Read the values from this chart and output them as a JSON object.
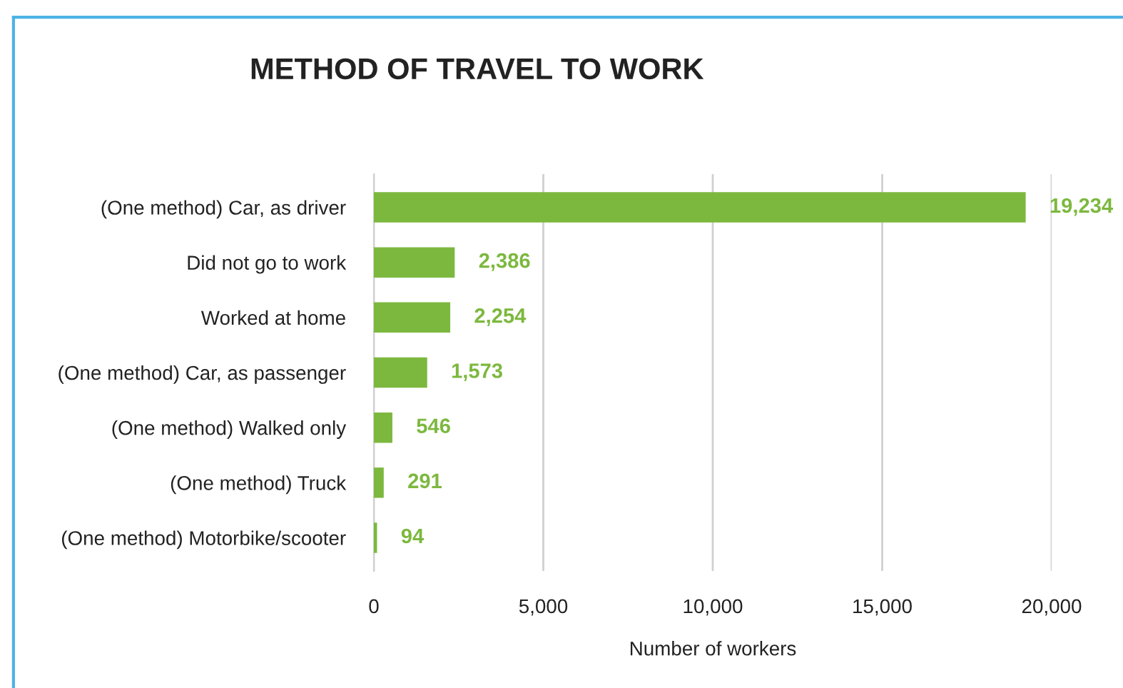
{
  "chart_data": {
    "type": "bar",
    "orientation": "horizontal",
    "title": "METHOD OF TRAVEL TO WORK",
    "xlabel": "Number of workers",
    "categories": [
      "(One method) Car, as driver",
      "Did not go to work",
      "Worked at home",
      "(One method) Car, as passenger",
      "(One method) Walked only",
      "(One method) Truck",
      "(One method) Motorbike/scooter"
    ],
    "values": [
      19234,
      2386,
      2254,
      1573,
      546,
      291,
      94
    ],
    "value_labels": [
      "19,234",
      "2,386",
      "2,254",
      "1,573",
      "546",
      "291",
      "94"
    ],
    "color": "#7cb83e",
    "xlim": [
      0,
      20000
    ],
    "xticks": [
      0,
      {
        "value": 5000,
        "label": "5,000"
      },
      {
        "value": 10000,
        "label": "10,000"
      },
      {
        "value": 15000,
        "label": "15,000"
      },
      {
        "value": 20000,
        "label": "20,000"
      }
    ],
    "grid": "x"
  }
}
